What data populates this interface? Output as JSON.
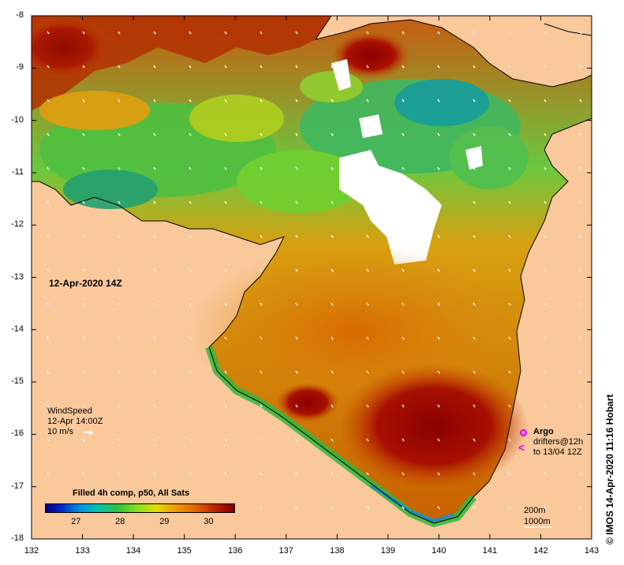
{
  "map": {
    "lon_range": [
      132,
      143
    ],
    "lat_range": [
      -18,
      -8
    ],
    "x_ticks": [
      "132",
      "133",
      "134",
      "135",
      "136",
      "137",
      "138",
      "139",
      "140",
      "141",
      "142",
      "143"
    ],
    "y_ticks": [
      "-8",
      "-9",
      "-10",
      "-11",
      "-12",
      "-13",
      "-14",
      "-15",
      "-16",
      "-17",
      "-18"
    ],
    "land_color": "#f9c99c",
    "no_data_color": "#ffffff"
  },
  "date_label": "12-Apr-2020 14Z",
  "wind": {
    "title": "WindSpeed",
    "time": "12-Apr 14:00Z",
    "scale": "10 m/s"
  },
  "legend": {
    "title": "Filled 4h comp, p50, All Sats",
    "ticks": [
      "27",
      "28",
      "29",
      "30"
    ],
    "range": [
      26.3,
      30.6
    ]
  },
  "argo": {
    "title": "Argo",
    "line1": "drifters@12h",
    "line2": "to 13/04 12Z"
  },
  "scale_bar": {
    "line1": "200m",
    "line2": "1000m"
  },
  "credit": "© IMOS 14-Apr-2020 11:16 Hobart"
}
